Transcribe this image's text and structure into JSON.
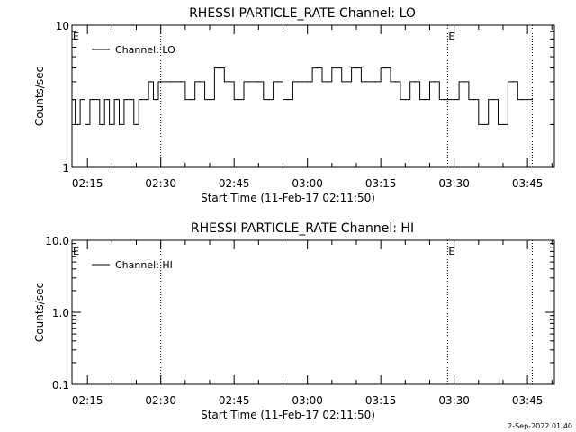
{
  "footer": {
    "timestamp": "2-Sep-2022 01:40"
  },
  "chart_data": [
    {
      "type": "line",
      "title": "RHESSI PARTICLE_RATE Channel: LO",
      "xlabel": "Start Time (11-Feb-17 02:11:50)",
      "ylabel": "Counts/sec",
      "yscale": "log",
      "ylim": [
        1,
        10
      ],
      "yticks": [
        {
          "label": "10",
          "value": 10
        },
        {
          "label": "1",
          "value": 1
        }
      ],
      "xticks": [
        "02:15",
        "02:30",
        "02:45",
        "03:00",
        "03:15",
        "03:30",
        "03:45"
      ],
      "legend": {
        "position": "top-left",
        "entries": [
          "Channel: LO"
        ]
      },
      "event_markers": [
        {
          "label": "E",
          "time": "02:11:50",
          "dotted_line": false
        },
        {
          "label": "",
          "time": "02:30:00",
          "dotted_line": true
        },
        {
          "label": "E",
          "time": "03:28:40",
          "dotted_line": true
        },
        {
          "label": "",
          "time": "03:46:00",
          "dotted_line": true
        }
      ],
      "series": [
        {
          "name": "Channel: LO",
          "x": [
            "02:12:00",
            "02:13:00",
            "02:14:00",
            "02:15:00",
            "02:16:00",
            "02:17:00",
            "02:18:00",
            "02:19:00",
            "02:20:00",
            "02:21:00",
            "02:22:00",
            "02:23:00",
            "02:24:00",
            "02:25:00",
            "02:26:00",
            "02:27:00",
            "02:28:00",
            "02:29:00",
            "02:30:00",
            "02:32:00",
            "02:34:00",
            "02:36:00",
            "02:38:00",
            "02:40:00",
            "02:42:00",
            "02:44:00",
            "02:46:00",
            "02:48:00",
            "02:50:00",
            "02:52:00",
            "02:54:00",
            "02:56:00",
            "02:58:00",
            "03:00:00",
            "03:02:00",
            "03:04:00",
            "03:06:00",
            "03:08:00",
            "03:10:00",
            "03:12:00",
            "03:14:00",
            "03:16:00",
            "03:18:00",
            "03:20:00",
            "03:22:00",
            "03:24:00",
            "03:26:00",
            "03:28:00",
            "03:30:00",
            "03:32:00",
            "03:34:00",
            "03:36:00",
            "03:38:00",
            "03:40:00",
            "03:42:00",
            "03:44:00",
            "03:46:00"
          ],
          "values": [
            3,
            2,
            3,
            2,
            3,
            3,
            2,
            3,
            2,
            3,
            2,
            3,
            3,
            2,
            3,
            3,
            4,
            3,
            4,
            4,
            4,
            3,
            4,
            3,
            5,
            4,
            3,
            4,
            4,
            3,
            4,
            3,
            4,
            4,
            5,
            4,
            5,
            4,
            5,
            4,
            4,
            5,
            4,
            3,
            4,
            3,
            4,
            3,
            3,
            4,
            3,
            2,
            3,
            2,
            4,
            3,
            3
          ]
        }
      ]
    },
    {
      "type": "line",
      "title": "RHESSI PARTICLE_RATE Channel: HI",
      "xlabel": "Start Time (11-Feb-17 02:11:50)",
      "ylabel": "Counts/sec",
      "yscale": "log",
      "ylim": [
        0.1,
        10
      ],
      "yticks": [
        {
          "label": "10.0",
          "value": 10
        },
        {
          "label": "1.0",
          "value": 1
        },
        {
          "label": "0.1",
          "value": 0.1
        }
      ],
      "xticks": [
        "02:15",
        "02:30",
        "02:45",
        "03:00",
        "03:15",
        "03:30",
        "03:45"
      ],
      "legend": {
        "position": "top-left",
        "entries": [
          "Channel: HI"
        ]
      },
      "event_markers": [
        {
          "label": "E",
          "time": "02:11:50",
          "dotted_line": false
        },
        {
          "label": "",
          "time": "02:30:00",
          "dotted_line": true
        },
        {
          "label": "E",
          "time": "03:28:40",
          "dotted_line": true
        },
        {
          "label": "",
          "time": "03:46:00",
          "dotted_line": true
        }
      ],
      "series": [
        {
          "name": "Channel: HI",
          "x": [],
          "values": []
        }
      ]
    }
  ]
}
